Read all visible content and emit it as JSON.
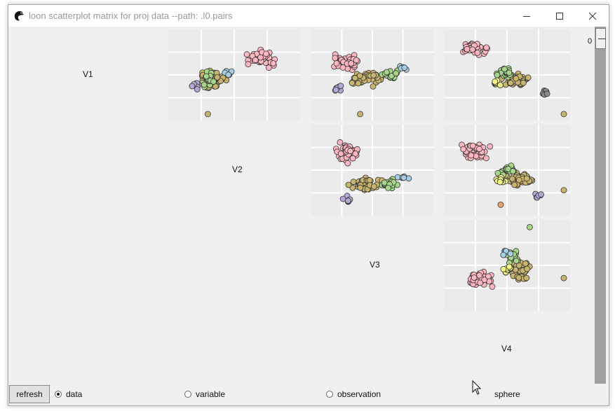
{
  "window": {
    "title": "loon scatterplot matrix for proj data --path: .l0.pairs"
  },
  "icons": {
    "app": "loon-bird-icon",
    "minimize": "minimize-icon",
    "maximize": "maximize-icon",
    "close": "close-icon",
    "cursor": "mouse-pointer-icon"
  },
  "matrix": {
    "variables": [
      "V1",
      "V2",
      "V3",
      "V4"
    ],
    "panels": [
      "V1 vs V2",
      "V1 vs V3",
      "V1 vs V4",
      "V2 vs V3",
      "V2 vs V4",
      "V3 vs V4"
    ]
  },
  "colors": {
    "pink": "#ffb6c1",
    "olive": "#c8b46e",
    "green": "#a6d68a",
    "lightblue": "#a6cee3",
    "purple": "#b4a7d6",
    "yellow": "#f5f58a",
    "gray": "#8c8c8c",
    "orange": "#e8a070"
  },
  "scrollbar": {
    "value": "0"
  },
  "controls": {
    "refresh_label": "refresh",
    "options": [
      {
        "label": "data",
        "selected": true
      },
      {
        "label": "variable",
        "selected": false
      },
      {
        "label": "observation",
        "selected": false
      },
      {
        "label": "sphere",
        "selected": false
      }
    ]
  }
}
